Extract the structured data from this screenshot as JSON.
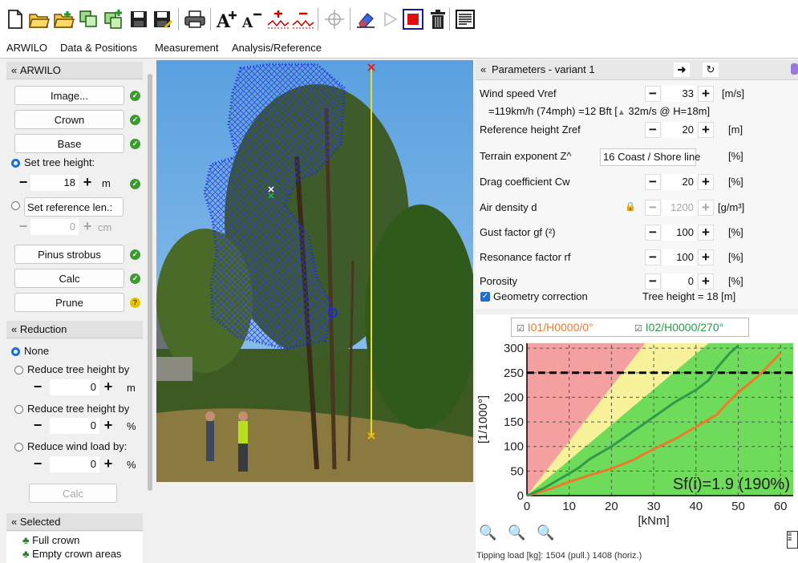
{
  "tabs": [
    "ARWILO",
    "Data & Positions",
    "Measurement",
    "Analysis/Reference"
  ],
  "toolbar_icons": [
    "new-document",
    "open-folder",
    "open-folder-plus",
    "copy",
    "copy-plus",
    "save",
    "save-as",
    "print",
    "font-larger",
    "font-smaller",
    "line-plus",
    "line-minus",
    "crosshair",
    "eraser",
    "play",
    "stop",
    "trash",
    "report"
  ],
  "left": {
    "header": "ARWILO",
    "image_btn": "Image...",
    "crown_btn": "Crown",
    "base_btn": "Base",
    "set_tree_height": "Set tree height:",
    "tree_height_value": "18",
    "tree_height_unit": "m",
    "set_reference": "Set reference len.:",
    "reference_value": "0",
    "reference_unit": "cm",
    "species_btn": "Pinus strobus",
    "calc_btn": "Calc",
    "prune_btn": "Prune",
    "reduction_header": "Reduction",
    "none_label": "None",
    "reduce_height_m": "Reduce tree height by",
    "reduce_height_m_value": "0",
    "unit_m": "m",
    "reduce_height_pct": "Reduce tree height by",
    "reduce_height_pct_value": "0",
    "unit_pct": "%",
    "reduce_wind": "Reduce wind load by:",
    "reduce_wind_value": "0",
    "unit_pct2": "%",
    "calc2_btn": "Calc",
    "selected_header": "Selected",
    "selected_items": [
      "Full crown",
      "Empty crown areas"
    ]
  },
  "params": {
    "header": "Parameters - variant 1",
    "wind_label": "Wind speed  Vref",
    "wind_value": "33",
    "wind_unit": "[m/s]",
    "wind_info": "=119km/h (74mph) =12 Bft [",
    "wind_info2": " 32m/s @ H=18m]",
    "ref_label": "Reference height  Zref",
    "ref_value": "20",
    "ref_unit": "[m]",
    "terrain_label": "Terrain exponent  Z^",
    "terrain_value": "16 Coast / Shore line",
    "terrain_unit": "[%]",
    "drag_label": "Drag coefficient  Cw",
    "drag_value": "20",
    "drag_unit": "[%]",
    "air_label": "Air density  d",
    "air_value": "1200",
    "air_unit": "[g/m³]",
    "gust_label": "Gust factor  gf (²)",
    "gust_value": "100",
    "gust_unit": "[%]",
    "res_label": "Resonance factor  rf",
    "res_value": "100",
    "res_unit": "[%]",
    "por_label": "Porosity",
    "por_value": "0",
    "por_unit": "[%]",
    "geo_label": "Geometry correction",
    "tree_height_text": "Tree height = 18 [m]"
  },
  "bottom": {
    "tipping_text": "Tipping load [kg]: 1504 (pull.) 1408 (horiz.)"
  },
  "colors": {
    "series1": "#f07a2a",
    "series2": "#2e9a4a",
    "red_zone": "#f4a0a0",
    "yellow_zone": "#f7f29a",
    "green_zone": "#6fdb5a"
  },
  "chart_data": {
    "type": "line",
    "legend": [
      "I01/H0000/0°",
      "I02/H0000/270°"
    ],
    "xlabel": "[kNm]",
    "ylabel": "[1/1000°]",
    "xlim": [
      0,
      63
    ],
    "ylim": [
      0,
      310
    ],
    "x_ticks": [
      0,
      10,
      20,
      30,
      40,
      50,
      60
    ],
    "y_ticks": [
      0,
      50,
      100,
      150,
      200,
      250,
      300
    ],
    "threshold": 250,
    "annotation": "Sf(i)=1.9 (190%)",
    "series": [
      {
        "name": "I01/H0000/0°",
        "points": [
          [
            0,
            0
          ],
          [
            5,
            12
          ],
          [
            10,
            28
          ],
          [
            15,
            42
          ],
          [
            20,
            55
          ],
          [
            25,
            72
          ],
          [
            30,
            95
          ],
          [
            35,
            115
          ],
          [
            40,
            140
          ],
          [
            45,
            165
          ],
          [
            47,
            185
          ],
          [
            50,
            210
          ],
          [
            55,
            245
          ],
          [
            60,
            290
          ]
        ]
      },
      {
        "name": "I02/H0000/270°",
        "points": [
          [
            0,
            0
          ],
          [
            4,
            15
          ],
          [
            8,
            35
          ],
          [
            12,
            55
          ],
          [
            15,
            75
          ],
          [
            20,
            100
          ],
          [
            25,
            130
          ],
          [
            30,
            160
          ],
          [
            35,
            190
          ],
          [
            40,
            215
          ],
          [
            43,
            235
          ],
          [
            45,
            260
          ],
          [
            48,
            290
          ],
          [
            50,
            305
          ]
        ]
      }
    ]
  }
}
